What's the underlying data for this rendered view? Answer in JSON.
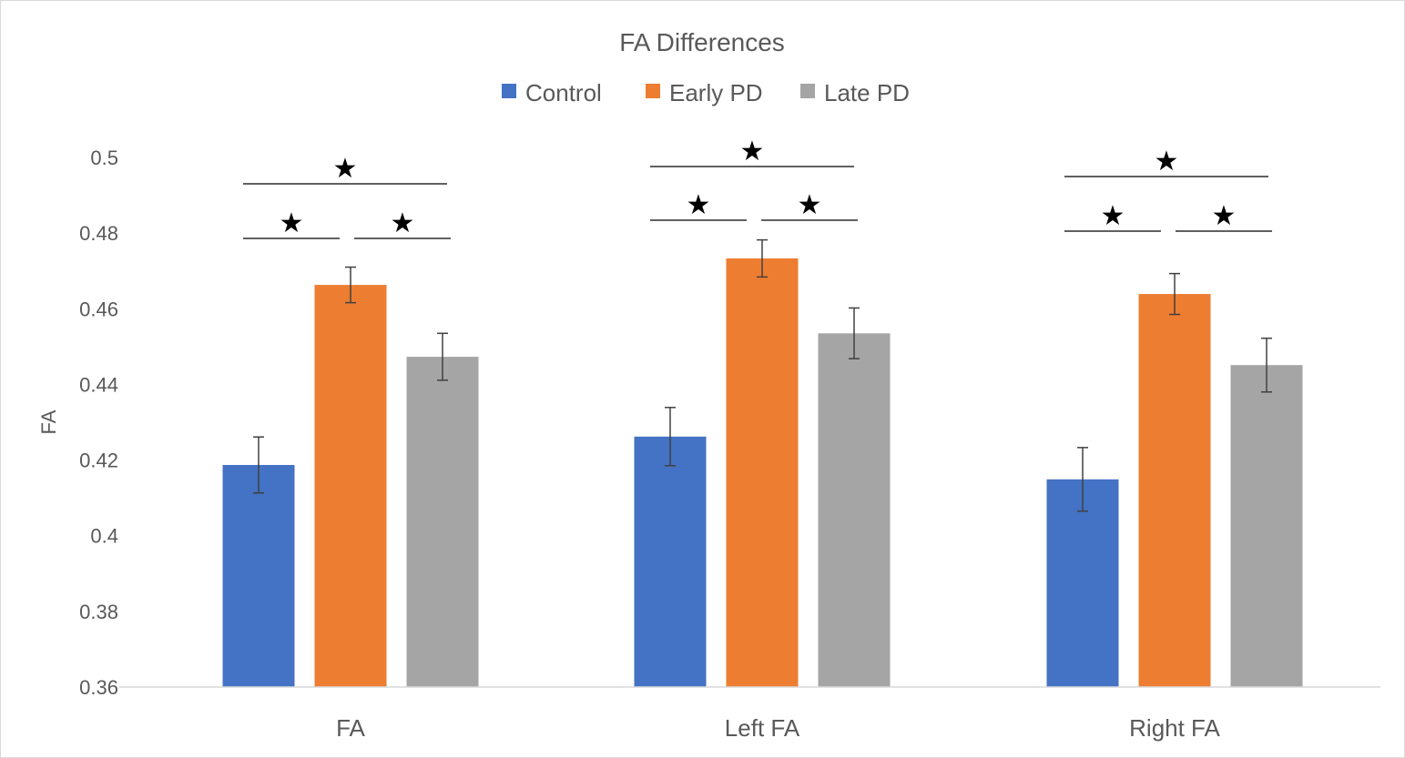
{
  "chart_data": {
    "type": "bar",
    "title": "FA Differences",
    "xlabel": "",
    "ylabel": "FA",
    "ylim": [
      0.36,
      0.5
    ],
    "yticks": [
      "0.36",
      "0.38",
      "0.4",
      "0.42",
      "0.44",
      "0.46",
      "0.48",
      "0.5"
    ],
    "categories": [
      "FA",
      "Left FA",
      "Right FA"
    ],
    "series": [
      {
        "name": "Control",
        "color": "#4472C4",
        "values": [
          0.4187,
          0.4262,
          0.4149
        ],
        "errors": [
          0.0074,
          0.0077,
          0.0084
        ]
      },
      {
        "name": "Early PD",
        "color": "#ED7D31",
        "values": [
          0.4663,
          0.4733,
          0.4639
        ],
        "errors": [
          0.0047,
          0.0049,
          0.0054
        ]
      },
      {
        "name": "Late PD",
        "color": "#A5A5A5",
        "values": [
          0.4473,
          0.4535,
          0.4451
        ],
        "errors": [
          0.0062,
          0.0067,
          0.0071
        ]
      }
    ],
    "significance": {
      "marker": "★",
      "comparisons": [
        {
          "category": 0,
          "pairs": [
            [
              0,
              1
            ],
            [
              1,
              2
            ],
            [
              0,
              2
            ]
          ]
        },
        {
          "category": 1,
          "pairs": [
            [
              0,
              1
            ],
            [
              1,
              2
            ],
            [
              0,
              2
            ]
          ]
        },
        {
          "category": 2,
          "pairs": [
            [
              0,
              1
            ],
            [
              1,
              2
            ],
            [
              0,
              2
            ]
          ]
        }
      ]
    },
    "grid": false,
    "legend_position": "top"
  }
}
